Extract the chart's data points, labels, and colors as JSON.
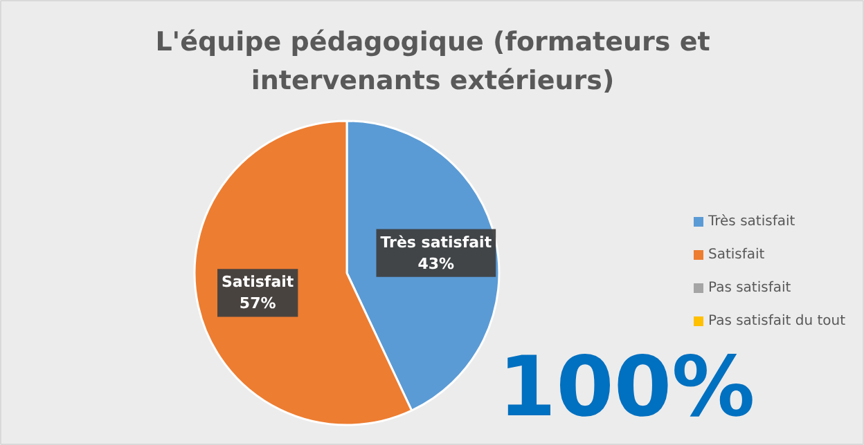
{
  "chart_data": {
    "type": "pie",
    "title": "L'équipe pédagogique (formateurs et intervenants extérieurs)",
    "categories": [
      "Très satisfait",
      "Satisfait",
      "Pas satisfait",
      "Pas satisfait du tout"
    ],
    "values": [
      43,
      57,
      0,
      0
    ],
    "colors": [
      "#5b9bd5",
      "#ed7d31",
      "#a5a5a5",
      "#ffc000"
    ],
    "value_labels": [
      "43%",
      "57%",
      null,
      null
    ],
    "legend": "right",
    "annotations": [
      "100%"
    ]
  }
}
